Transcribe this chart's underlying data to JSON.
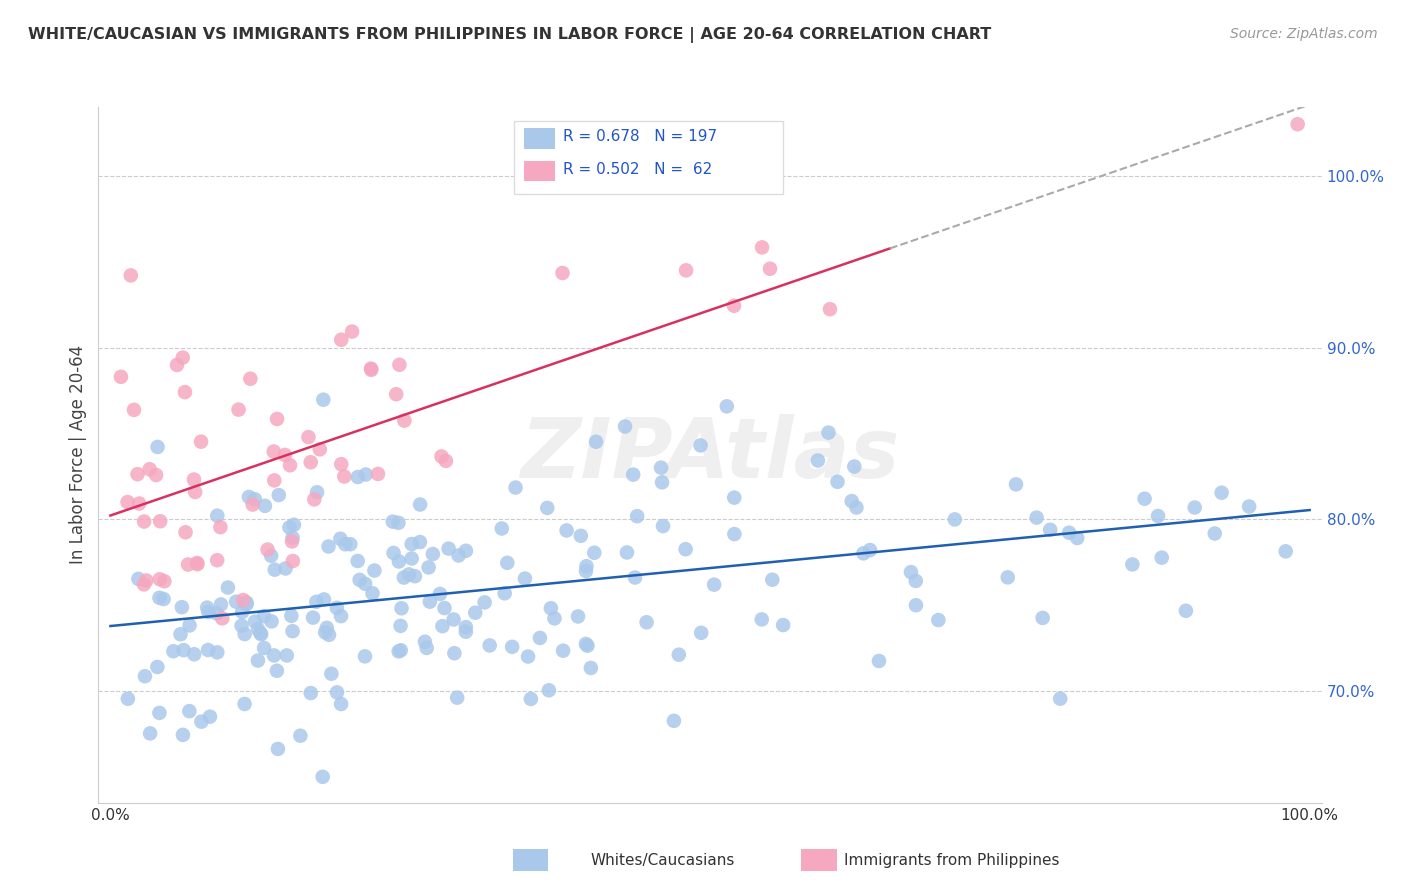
{
  "title": "WHITE/CAUCASIAN VS IMMIGRANTS FROM PHILIPPINES IN LABOR FORCE | AGE 20-64 CORRELATION CHART",
  "source": "Source: ZipAtlas.com",
  "ylabel": "In Labor Force | Age 20-64",
  "legend_R": [
    0.678,
    0.502
  ],
  "legend_N": [
    197,
    62
  ],
  "blue_color": "#aac8ea",
  "pink_color": "#f5a8c0",
  "blue_line_color": "#2060b0",
  "pink_line_color": "#d83060",
  "legend_text_color": "#2255cc",
  "watermark": "ZIPAtlas",
  "legend_labels": [
    "Whites/Caucasians",
    "Immigrants from Philippines"
  ],
  "ytick_color": "#3366cc",
  "title_color": "#333333",
  "source_color": "#999999"
}
